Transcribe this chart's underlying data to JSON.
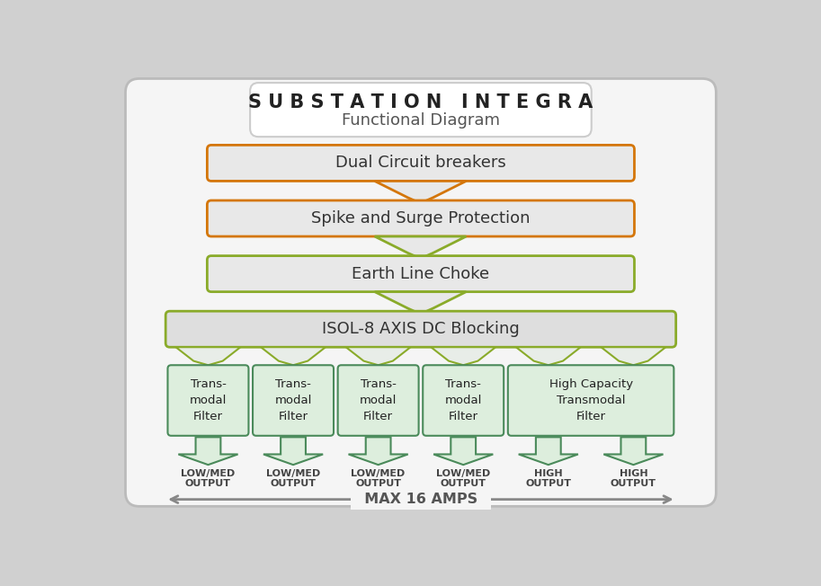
{
  "title_main": "S U B S T A T I O N   I N T E G R A",
  "title_sub": "Functional Diagram",
  "block1_label": "Dual Circuit breakers",
  "block1_color": "#d4760a",
  "block2_label": "Spike and Surge Protection",
  "block2_color": "#d4760a",
  "block3_label": "Earth Line Choke",
  "block3_color": "#8aab2a",
  "block4_label": "ISOL-8 AXIS DC Blocking",
  "block4_color": "#8aab2a",
  "filter_labels": [
    "Trans-\nmodal\nFilter",
    "Trans-\nmodal\nFilter",
    "Trans-\nmodal\nFilter",
    "Trans-\nmodal\nFilter",
    "High Capacity\nTransmodal\nFilter"
  ],
  "filter_color": "#4a8a5a",
  "filter_bg": "#ddeedd",
  "connector_color_orange": "#d4760a",
  "connector_color_green": "#8aab2a",
  "max_amps_label": "MAX 16 AMPS",
  "outer_bg": "#f5f5f5",
  "outer_edge": "#bbbbbb",
  "block_bg": "#e8e8e8",
  "block_bg2": "#dedede",
  "title_box_bg": "#ffffff",
  "arrow_fc": "#e0e8e0",
  "arrow_ec": "#5a9a6a"
}
